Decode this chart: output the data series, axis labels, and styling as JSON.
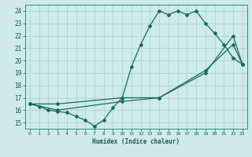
{
  "bg_color": "#ceeaeb",
  "grid_color": "#aed4d6",
  "line_color": "#1a6b5e",
  "xlabel": "Humidex (Indice chaleur)",
  "xlim": [
    -0.5,
    23.5
  ],
  "ylim": [
    14.5,
    24.5
  ],
  "yticks": [
    15,
    16,
    17,
    18,
    19,
    20,
    21,
    22,
    23,
    24
  ],
  "xticks": [
    0,
    1,
    2,
    3,
    4,
    5,
    6,
    7,
    8,
    9,
    10,
    11,
    12,
    13,
    14,
    15,
    16,
    17,
    18,
    19,
    20,
    21,
    22,
    23
  ],
  "line1": {
    "x": [
      0,
      1,
      2,
      3,
      4,
      5,
      6,
      7,
      8,
      9,
      10,
      11,
      12,
      13,
      14,
      15,
      16,
      17,
      18,
      19,
      20,
      21,
      22,
      23
    ],
    "y": [
      16.5,
      16.3,
      16.0,
      15.9,
      15.8,
      15.5,
      15.2,
      14.7,
      15.2,
      16.2,
      17.0,
      19.5,
      21.3,
      22.8,
      24.0,
      23.7,
      24.0,
      23.7,
      24.0,
      23.0,
      22.2,
      21.3,
      20.2,
      19.7
    ]
  },
  "line2": {
    "x": [
      0,
      3,
      10,
      14,
      19,
      22,
      23
    ],
    "y": [
      16.5,
      16.5,
      17.0,
      17.0,
      19.0,
      22.0,
      19.7
    ]
  },
  "line3": {
    "x": [
      0,
      3,
      10,
      14,
      19,
      22,
      23
    ],
    "y": [
      16.5,
      16.0,
      16.7,
      17.0,
      19.2,
      21.3,
      19.7
    ]
  }
}
